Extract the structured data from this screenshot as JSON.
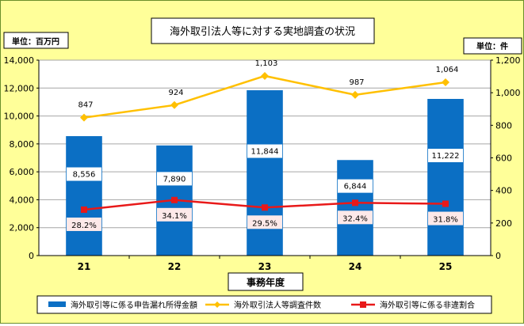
{
  "chart_data": {
    "type": "bar+line",
    "title": "海外取引法人等に対する実地調査の状況",
    "xlabel": "事務年度",
    "y_left_unit": "単位：百万円",
    "y_right_unit": "単位：件",
    "categories": [
      "21",
      "22",
      "23",
      "24",
      "25"
    ],
    "ylim_left": [
      0,
      14000
    ],
    "ylim_right": [
      0,
      1200
    ],
    "yticks_left": [
      "0",
      "2,000",
      "4,000",
      "6,000",
      "8,000",
      "10,000",
      "12,000",
      "14,000"
    ],
    "yticks_right": [
      "0",
      "200",
      "400",
      "600",
      "800",
      "1,000",
      "1,200"
    ],
    "grid": true,
    "legend_position": "bottom",
    "series": [
      {
        "name": "海外取引等に係る申告漏れ所得金額",
        "type": "bar",
        "axis": "left",
        "color": "#0b6fc4",
        "values": [
          8556,
          7890,
          11844,
          6844,
          11222
        ],
        "labels": [
          "8,556",
          "7,890",
          "11,844",
          "6,844",
          "11,222"
        ]
      },
      {
        "name": "海外取引法人等調査件数",
        "type": "line",
        "axis": "right",
        "color": "#ffc000",
        "values": [
          847,
          924,
          1103,
          987,
          1064
        ],
        "labels": [
          "847",
          "924",
          "1,103",
          "987",
          "1,064"
        ]
      },
      {
        "name": "海外取引等に係る非違割合",
        "type": "line",
        "axis": "right",
        "color": "#e81919",
        "values": [
          28.2,
          34.1,
          29.5,
          32.4,
          31.8
        ],
        "labels": [
          "28.2%",
          "34.1%",
          "29.5%",
          "32.4%",
          "31.8%"
        ]
      }
    ]
  }
}
